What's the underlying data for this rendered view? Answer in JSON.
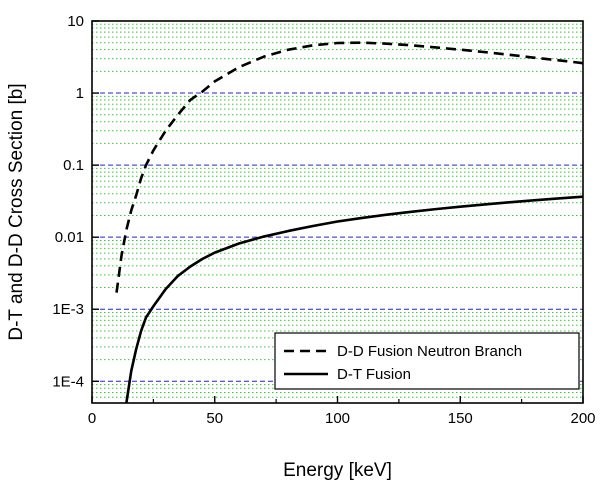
{
  "chart_data": {
    "type": "line",
    "title": "",
    "xlabel": "Energy [keV]",
    "ylabel": "D-T and D-D Cross Section [b]",
    "xlim": [
      0,
      200
    ],
    "ylim": [
      5e-05,
      10
    ],
    "y_scale": "log",
    "x_ticks": [
      0,
      50,
      100,
      150,
      200
    ],
    "x_tick_labels": [
      "0",
      "50",
      "100",
      "150",
      "200"
    ],
    "y_ticks": [
      0.0001,
      0.001,
      0.01,
      0.1,
      1,
      10
    ],
    "y_tick_labels": [
      "1E-4",
      "1E-3",
      "0.01",
      "0.1",
      "1",
      "10"
    ],
    "grid": {
      "major": true,
      "major_color": "#2020e0",
      "minor": true,
      "minor_color": "#33cc33"
    },
    "legend_position": "bottom-right",
    "series": [
      {
        "name": "D-D Fusion Neutron Branch",
        "style": "dashed",
        "color": "#000000",
        "x": [
          10,
          12,
          14,
          16,
          18,
          20,
          22,
          25,
          30,
          35,
          40,
          45,
          50,
          60,
          70,
          80,
          90,
          100,
          110,
          120,
          130,
          140,
          150,
          160,
          170,
          180,
          190,
          200
        ],
        "y": [
          0.0017,
          0.0055,
          0.0126,
          0.0236,
          0.0381,
          0.0657,
          0.1,
          0.16,
          0.3,
          0.5,
          0.8,
          1.05,
          1.45,
          2.3,
          3.2,
          4.0,
          4.6,
          4.95,
          5.0,
          4.85,
          4.6,
          4.3,
          4.0,
          3.7,
          3.4,
          3.1,
          2.85,
          2.6
        ]
      },
      {
        "name": "D-T Fusion",
        "style": "solid",
        "color": "#000000",
        "x": [
          14,
          16,
          18,
          20,
          22,
          25,
          30,
          35,
          40,
          45,
          50,
          60,
          70,
          80,
          90,
          100,
          110,
          120,
          130,
          140,
          150,
          160,
          170,
          180,
          190,
          200
        ],
        "y": [
          5e-05,
          0.00014,
          0.00028,
          0.0005,
          0.00077,
          0.0011,
          0.0019,
          0.0029,
          0.0039,
          0.005,
          0.0061,
          0.0082,
          0.0102,
          0.0122,
          0.0143,
          0.0165,
          0.0185,
          0.0205,
          0.0225,
          0.0245,
          0.0265,
          0.0285,
          0.0305,
          0.0325,
          0.0345,
          0.0365
        ]
      }
    ]
  }
}
